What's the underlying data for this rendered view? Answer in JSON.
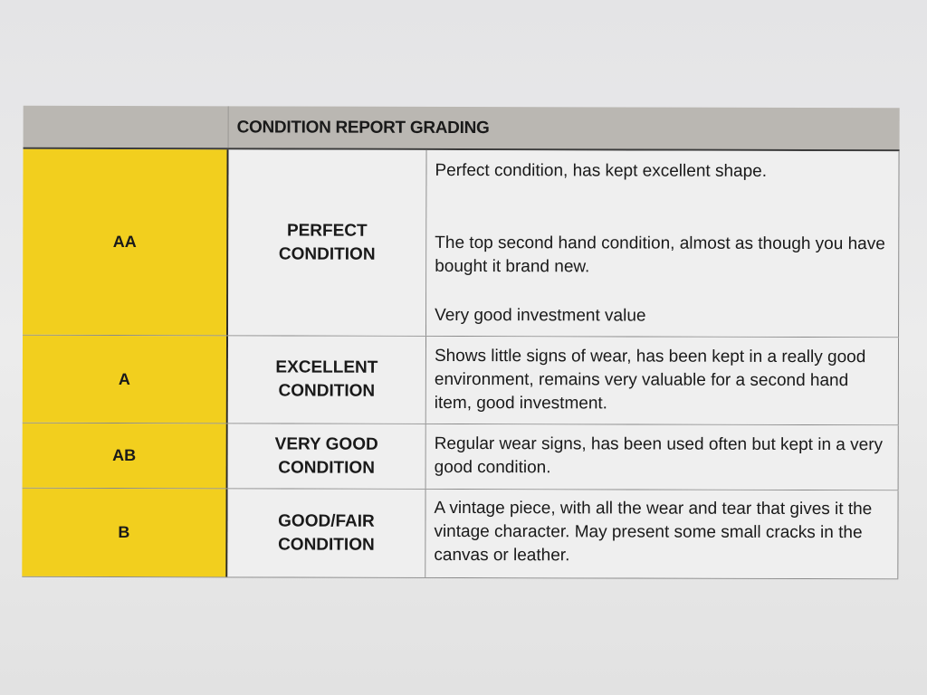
{
  "table": {
    "title": "CONDITION REPORT GRADING",
    "grade_color": "#f2cf1e",
    "rows": [
      {
        "grade": "AA",
        "condition": "PERFECT CONDITION",
        "descriptions": [
          "Perfect condition, has kept excellent shape.",
          "The top second hand condition, almost as though you have bought it brand new.",
          "Very good investment value"
        ]
      },
      {
        "grade": "A",
        "condition": "EXCELLENT CONDITION",
        "descriptions": [
          "Shows little signs of wear, has been kept in a really good environment, remains very valuable for a second hand item, good investment."
        ]
      },
      {
        "grade": "AB",
        "condition": "VERY GOOD CONDITION",
        "descriptions": [
          "Regular wear signs, has been used often but kept in a very good condition."
        ]
      },
      {
        "grade": "B",
        "condition": "GOOD/FAIR CONDITION",
        "descriptions": [
          "A vintage piece, with all the wear and tear that gives it the vintage character. May present some small cracks in the canvas or leather."
        ]
      }
    ]
  }
}
